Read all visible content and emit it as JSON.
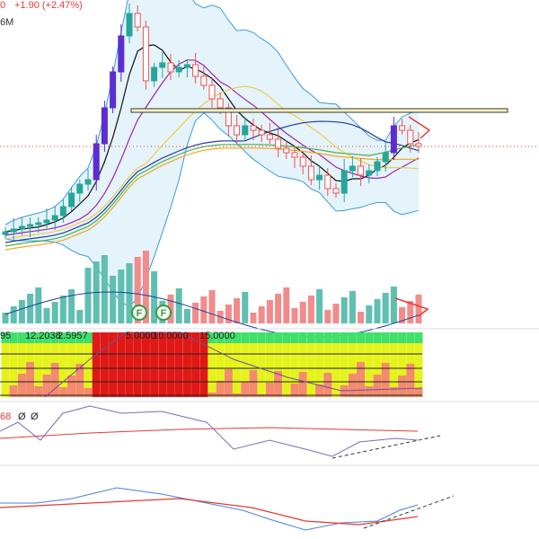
{
  "header": {
    "truncated_value": "0",
    "price_change": "+1.90 (+2.47%)",
    "volume_label": "6M"
  },
  "markers": [
    "F",
    "F"
  ],
  "indicator_labels": [
    "95",
    "12.2038",
    "2.5957",
    "5.0000",
    "10.0000",
    "15.0000"
  ],
  "oscillator_labels": [
    "68",
    "Ø",
    "Ø"
  ]
}
